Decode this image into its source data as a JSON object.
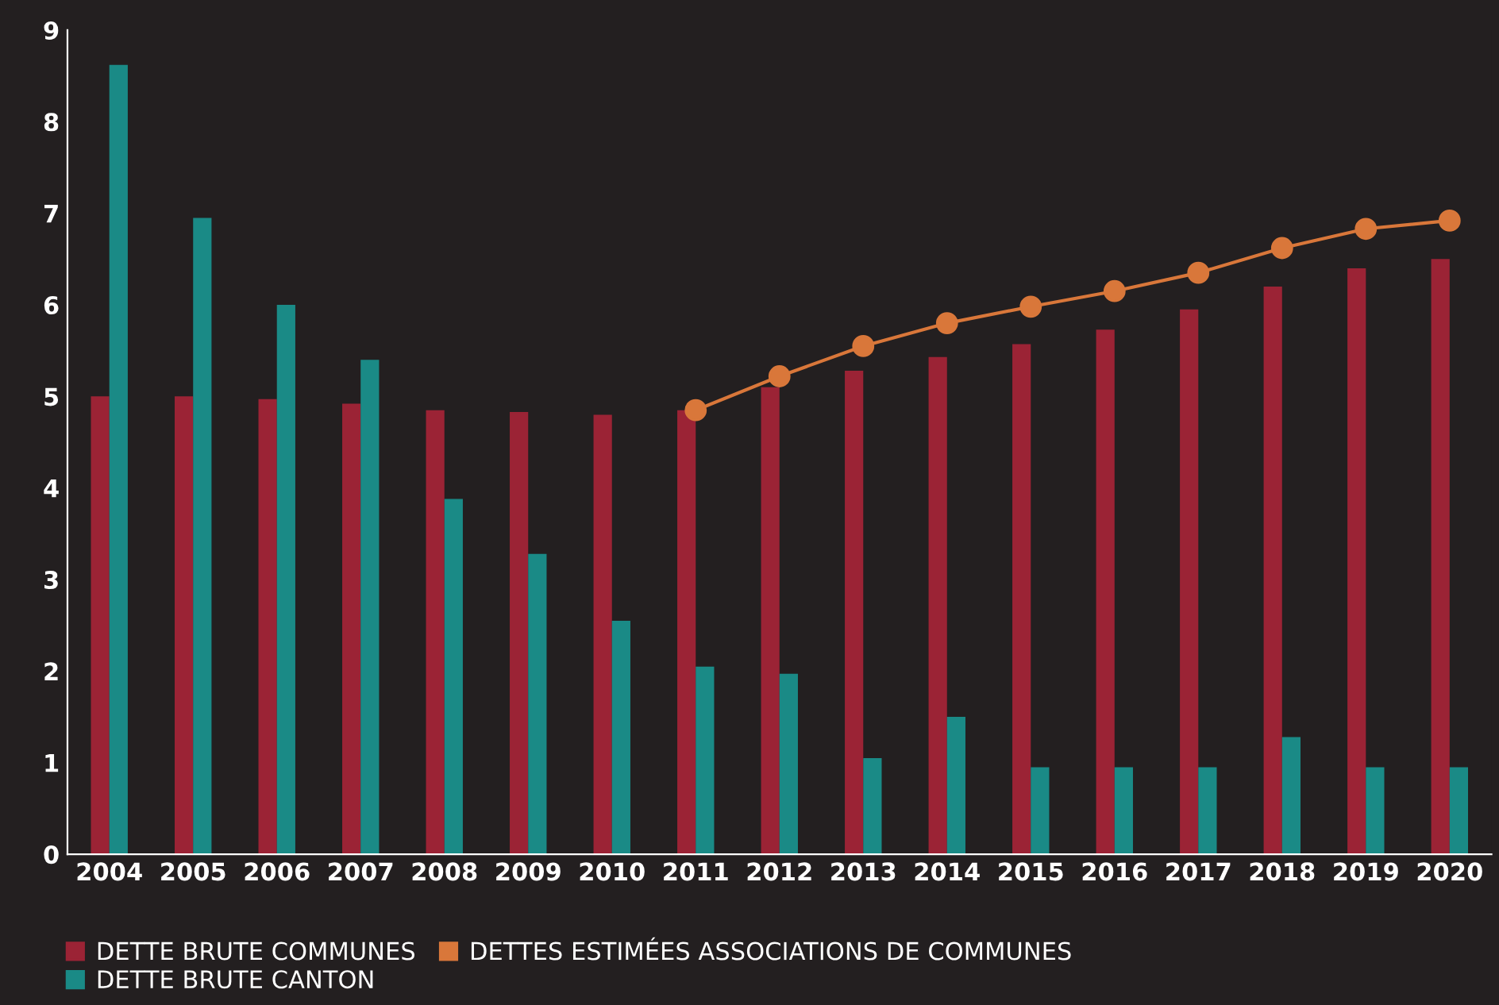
{
  "chart_data": {
    "type": "bar",
    "categories": [
      "2004",
      "2005",
      "2006",
      "2007",
      "2008",
      "2009",
      "2010",
      "2011",
      "2012",
      "2013",
      "2014",
      "2015",
      "2016",
      "2017",
      "2018",
      "2019",
      "2020"
    ],
    "series": [
      {
        "name": "DETTE BRUTE COMMUNES",
        "color": "#9b2335",
        "values": [
          5.0,
          5.0,
          4.97,
          4.92,
          4.85,
          4.83,
          4.8,
          4.85,
          5.1,
          5.28,
          5.43,
          5.57,
          5.73,
          5.95,
          6.2,
          6.4,
          6.5
        ]
      },
      {
        "name": "DETTE BRUTE CANTON",
        "color": "#1a8a86",
        "values": [
          8.62,
          6.95,
          6.0,
          5.4,
          3.88,
          3.28,
          2.55,
          2.05,
          1.97,
          1.05,
          1.5,
          0.95,
          0.95,
          0.95,
          1.28,
          0.95,
          0.95
        ]
      },
      {
        "name": "DETTES ESTIMÉES ASSOCIATIONS DE COMMUNES",
        "color": "#d9773a",
        "type": "line",
        "marker": "circle",
        "values": [
          null,
          null,
          null,
          null,
          null,
          null,
          null,
          4.85,
          5.22,
          5.55,
          5.8,
          5.98,
          6.15,
          6.35,
          6.62,
          6.83,
          6.92
        ]
      }
    ],
    "ylim": [
      0,
      9
    ],
    "yticks": [
      0,
      1,
      2,
      3,
      4,
      5,
      6,
      7,
      8,
      9
    ],
    "grid": false,
    "legend": "bottom left"
  }
}
